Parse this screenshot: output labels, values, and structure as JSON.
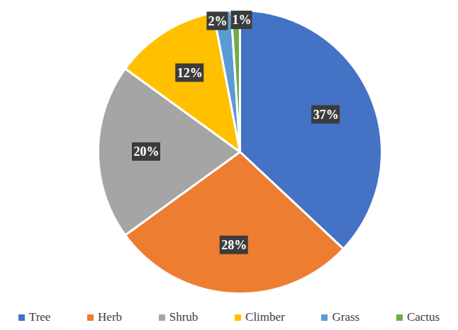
{
  "chart_data": {
    "type": "pie",
    "categories": [
      "Tree",
      "Herb",
      "Shrub",
      "Climber",
      "Grass",
      "Cactus"
    ],
    "values": [
      37,
      28,
      20,
      12,
      2,
      1
    ],
    "value_labels": [
      "37%",
      "28%",
      "20%",
      "12%",
      "2%",
      "1%"
    ],
    "colors": [
      "#4472c4",
      "#ed7d31",
      "#a5a5a5",
      "#ffc000",
      "#5b9bd5",
      "#70ad47"
    ],
    "data_labels": true,
    "legend": "bottom"
  }
}
